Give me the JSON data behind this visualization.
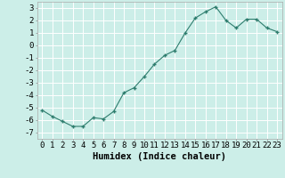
{
  "x": [
    0,
    1,
    2,
    3,
    4,
    5,
    6,
    7,
    8,
    9,
    10,
    11,
    12,
    13,
    14,
    15,
    16,
    17,
    18,
    19,
    20,
    21,
    22,
    23
  ],
  "y": [
    -5.2,
    -5.7,
    -6.1,
    -6.5,
    -6.5,
    -5.8,
    -5.9,
    -5.3,
    -3.8,
    -3.4,
    -2.5,
    -1.5,
    -0.8,
    -0.4,
    1.0,
    2.2,
    2.7,
    3.1,
    2.0,
    1.4,
    2.1,
    2.1,
    1.4,
    1.1
  ],
  "line_color": "#2e7d6e",
  "marker": "+",
  "marker_color": "#2e7d6e",
  "bg_color": "#cceee8",
  "grid_color": "#ffffff",
  "xlabel": "Humidex (Indice chaleur)",
  "xlim": [
    -0.5,
    23.5
  ],
  "ylim": [
    -7.5,
    3.5
  ],
  "yticks": [
    -7,
    -6,
    -5,
    -4,
    -3,
    -2,
    -1,
    0,
    1,
    2,
    3
  ],
  "xtick_labels": [
    "0",
    "1",
    "2",
    "3",
    "4",
    "5",
    "6",
    "7",
    "8",
    "9",
    "10",
    "11",
    "12",
    "13",
    "14",
    "15",
    "16",
    "17",
    "18",
    "19",
    "20",
    "21",
    "22",
    "23"
  ],
  "tick_font_size": 6.5,
  "xlabel_font_size": 7.5
}
